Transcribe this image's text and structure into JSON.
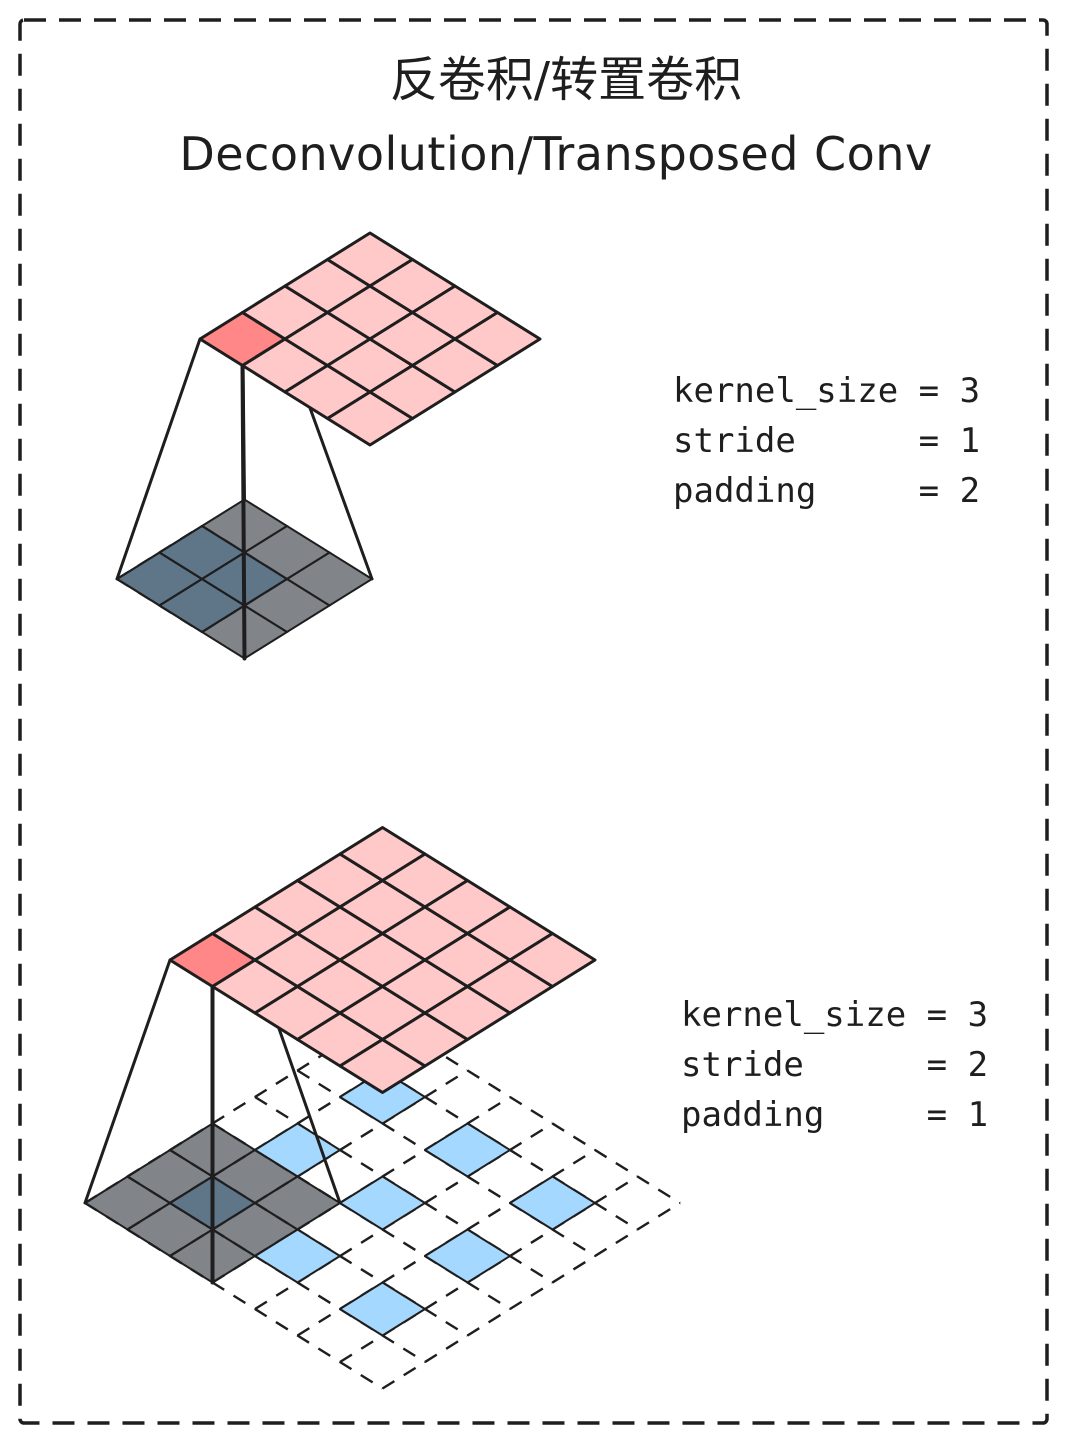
{
  "title": {
    "line1": "反卷积/转置卷积",
    "line2": "Deconvolution/Transposed Conv"
  },
  "examples": [
    {
      "params": {
        "kernel_size": "kernel_size = 3",
        "stride": "stride      = 1",
        "padding": "padding     = 2"
      },
      "input_size": 2,
      "output_size": 4,
      "kernel_size": 3,
      "stride": 1,
      "padding": 2
    },
    {
      "params": {
        "kernel_size": "kernel_size = 3",
        "stride": "stride      = 2",
        "padding": "padding     = 1"
      },
      "input_size": 3,
      "output_size": 5,
      "kernel_size": 3,
      "stride": 2,
      "padding": 1
    }
  ],
  "colors": {
    "output_cell": "#ffc9c9",
    "output_highlight": "#ff8787",
    "input_cell": "#a5d8ff",
    "kernel_window": "#343a40",
    "stroke": "#1e1e1e"
  }
}
